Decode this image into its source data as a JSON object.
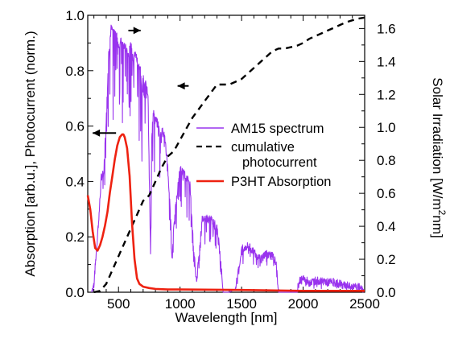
{
  "chart_data": {
    "type": "line",
    "xlabel": "Wavelength  [nm]",
    "ylabel_left": "Absorption  [arb.u.], Photocurrent (norm.)",
    "ylabel_right_parts": [
      "Solar Irradiation  [W/m",
      "2",
      "nm]"
    ],
    "xlim": [
      250,
      2500
    ],
    "ylim_left": [
      0,
      1.0
    ],
    "ylim_right": [
      0,
      1.68
    ],
    "x_ticks": [
      500,
      1000,
      1500,
      2000,
      2500
    ],
    "x_tick_labels": [
      "500",
      "1000",
      "1500",
      "2000",
      "2500"
    ],
    "y_left_ticks": [
      0,
      0.2,
      0.4,
      0.6,
      0.8,
      1.0
    ],
    "y_left_tick_labels": [
      "0.0",
      "0.2",
      "0.4",
      "0.6",
      "0.8",
      "1.0"
    ],
    "y_right_ticks": [
      0,
      0.2,
      0.4,
      0.6,
      0.8,
      1.0,
      1.2,
      1.4,
      1.6
    ],
    "y_right_tick_labels": [
      "0.0",
      "0.2",
      "0.4",
      "0.6",
      "0.8",
      "1.0",
      "1.2",
      "1.4",
      "1.6"
    ],
    "grid": false,
    "legend_placement": "center-right",
    "series": [
      {
        "name": "AM15 spectrum",
        "axis": "right",
        "color": "#9933ee",
        "style": "solid",
        "x": [
          280,
          300,
          320,
          340,
          360,
          380,
          400,
          420,
          440,
          460,
          480,
          500,
          520,
          540,
          560,
          580,
          600,
          620,
          640,
          660,
          680,
          690,
          700,
          720,
          740,
          760,
          770,
          780,
          800,
          820,
          840,
          860,
          880,
          900,
          920,
          935,
          950,
          970,
          1000,
          1050,
          1080,
          1100,
          1120,
          1135,
          1150,
          1180,
          1200,
          1250,
          1300,
          1330,
          1350,
          1380,
          1400,
          1450,
          1480,
          1500,
          1550,
          1600,
          1650,
          1700,
          1750,
          1780,
          1800,
          1850,
          1900,
          1950,
          1970,
          2000,
          2050,
          2100,
          2150,
          2200,
          2250,
          2300,
          2350,
          2400,
          2450,
          2490
        ],
        "y": [
          0.0,
          0.05,
          0.25,
          0.45,
          0.7,
          0.72,
          1.05,
          1.45,
          1.6,
          1.58,
          1.58,
          1.5,
          1.52,
          1.5,
          1.48,
          1.44,
          1.5,
          1.42,
          1.45,
          1.38,
          1.35,
          1.2,
          1.3,
          1.26,
          1.2,
          0.22,
          0.95,
          1.1,
          1.05,
          1.02,
          0.95,
          0.98,
          0.92,
          0.75,
          0.5,
          0.2,
          0.42,
          0.55,
          0.75,
          0.7,
          0.66,
          0.38,
          0.18,
          0.05,
          0.2,
          0.44,
          0.45,
          0.44,
          0.4,
          0.2,
          0.0,
          0.0,
          0.0,
          0.02,
          0.15,
          0.26,
          0.28,
          0.25,
          0.2,
          0.24,
          0.22,
          0.18,
          0.0,
          0.0,
          0.0,
          0.0,
          0.07,
          0.08,
          0.06,
          0.07,
          0.07,
          0.06,
          0.06,
          0.05,
          0.04,
          0.03,
          0.03,
          0.02
        ],
        "noise_amplitude": 0.05
      },
      {
        "name": "cumulative\nphotocurrent",
        "axis": "left",
        "color": "#000000",
        "style": "dashed",
        "x": [
          300,
          350,
          400,
          450,
          500,
          550,
          600,
          650,
          700,
          750,
          800,
          850,
          900,
          950,
          1000,
          1050,
          1100,
          1150,
          1200,
          1250,
          1300,
          1350,
          1400,
          1450,
          1500,
          1550,
          1600,
          1650,
          1700,
          1750,
          1800,
          1850,
          1900,
          1950,
          2000,
          2050,
          2100,
          2150,
          2200,
          2250,
          2300,
          2350,
          2400,
          2450,
          2500
        ],
        "y": [
          0.0,
          0.005,
          0.03,
          0.08,
          0.13,
          0.18,
          0.23,
          0.28,
          0.33,
          0.35,
          0.4,
          0.45,
          0.49,
          0.51,
          0.55,
          0.59,
          0.63,
          0.66,
          0.69,
          0.72,
          0.75,
          0.75,
          0.75,
          0.76,
          0.77,
          0.79,
          0.81,
          0.83,
          0.85,
          0.87,
          0.88,
          0.88,
          0.885,
          0.89,
          0.9,
          0.915,
          0.925,
          0.935,
          0.945,
          0.955,
          0.965,
          0.975,
          0.982,
          0.988,
          0.992
        ]
      },
      {
        "name": "P3HT Absorption",
        "axis": "left",
        "color": "#ee2211",
        "style": "solid",
        "x": [
          250,
          270,
          290,
          310,
          330,
          350,
          370,
          390,
          410,
          430,
          450,
          470,
          490,
          510,
          530,
          540,
          550,
          570,
          590,
          610,
          630,
          650,
          670,
          700,
          750,
          800,
          900,
          1000,
          1500,
          2000,
          2500
        ],
        "y": [
          0.35,
          0.3,
          0.22,
          0.16,
          0.15,
          0.17,
          0.2,
          0.24,
          0.29,
          0.36,
          0.42,
          0.48,
          0.53,
          0.56,
          0.57,
          0.57,
          0.56,
          0.52,
          0.42,
          0.25,
          0.12,
          0.05,
          0.03,
          0.02,
          0.015,
          0.012,
          0.01,
          0.01,
          0.008,
          0.005,
          0.005
        ]
      }
    ],
    "annotations": [
      {
        "type": "arrow",
        "direction": "right",
        "x_from": 580,
        "x_to": 680,
        "y_left": 0.945
      },
      {
        "type": "arrow",
        "direction": "left",
        "x_from": 1070,
        "x_to": 980,
        "y_left": 0.745
      },
      {
        "type": "arrow",
        "direction": "left",
        "x_from": 480,
        "x_to": 290,
        "y_left": 0.575
      }
    ]
  }
}
